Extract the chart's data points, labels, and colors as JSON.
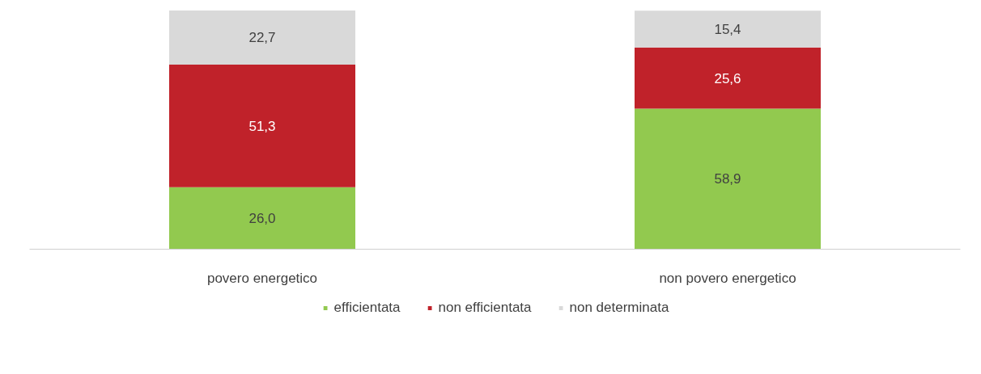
{
  "chart_data": {
    "type": "bar",
    "stacked": true,
    "categories": [
      "povero energetico",
      "non povero energetico"
    ],
    "series": [
      {
        "name": "efficientata",
        "color": "#92c94f",
        "values": [
          26.0,
          58.9
        ],
        "value_labels": [
          "26,0",
          "58,9"
        ]
      },
      {
        "name": "non efficientata",
        "color": "#c0222a",
        "values": [
          51.3,
          25.6
        ],
        "value_labels": [
          "51,3",
          "25,6"
        ]
      },
      {
        "name": "non determinata",
        "color": "#d9d9d9",
        "values": [
          22.7,
          15.4
        ],
        "value_labels": [
          "22,7",
          "15,4"
        ]
      }
    ],
    "tick_labels": "x",
    "grid": false,
    "legend": "bottom"
  }
}
